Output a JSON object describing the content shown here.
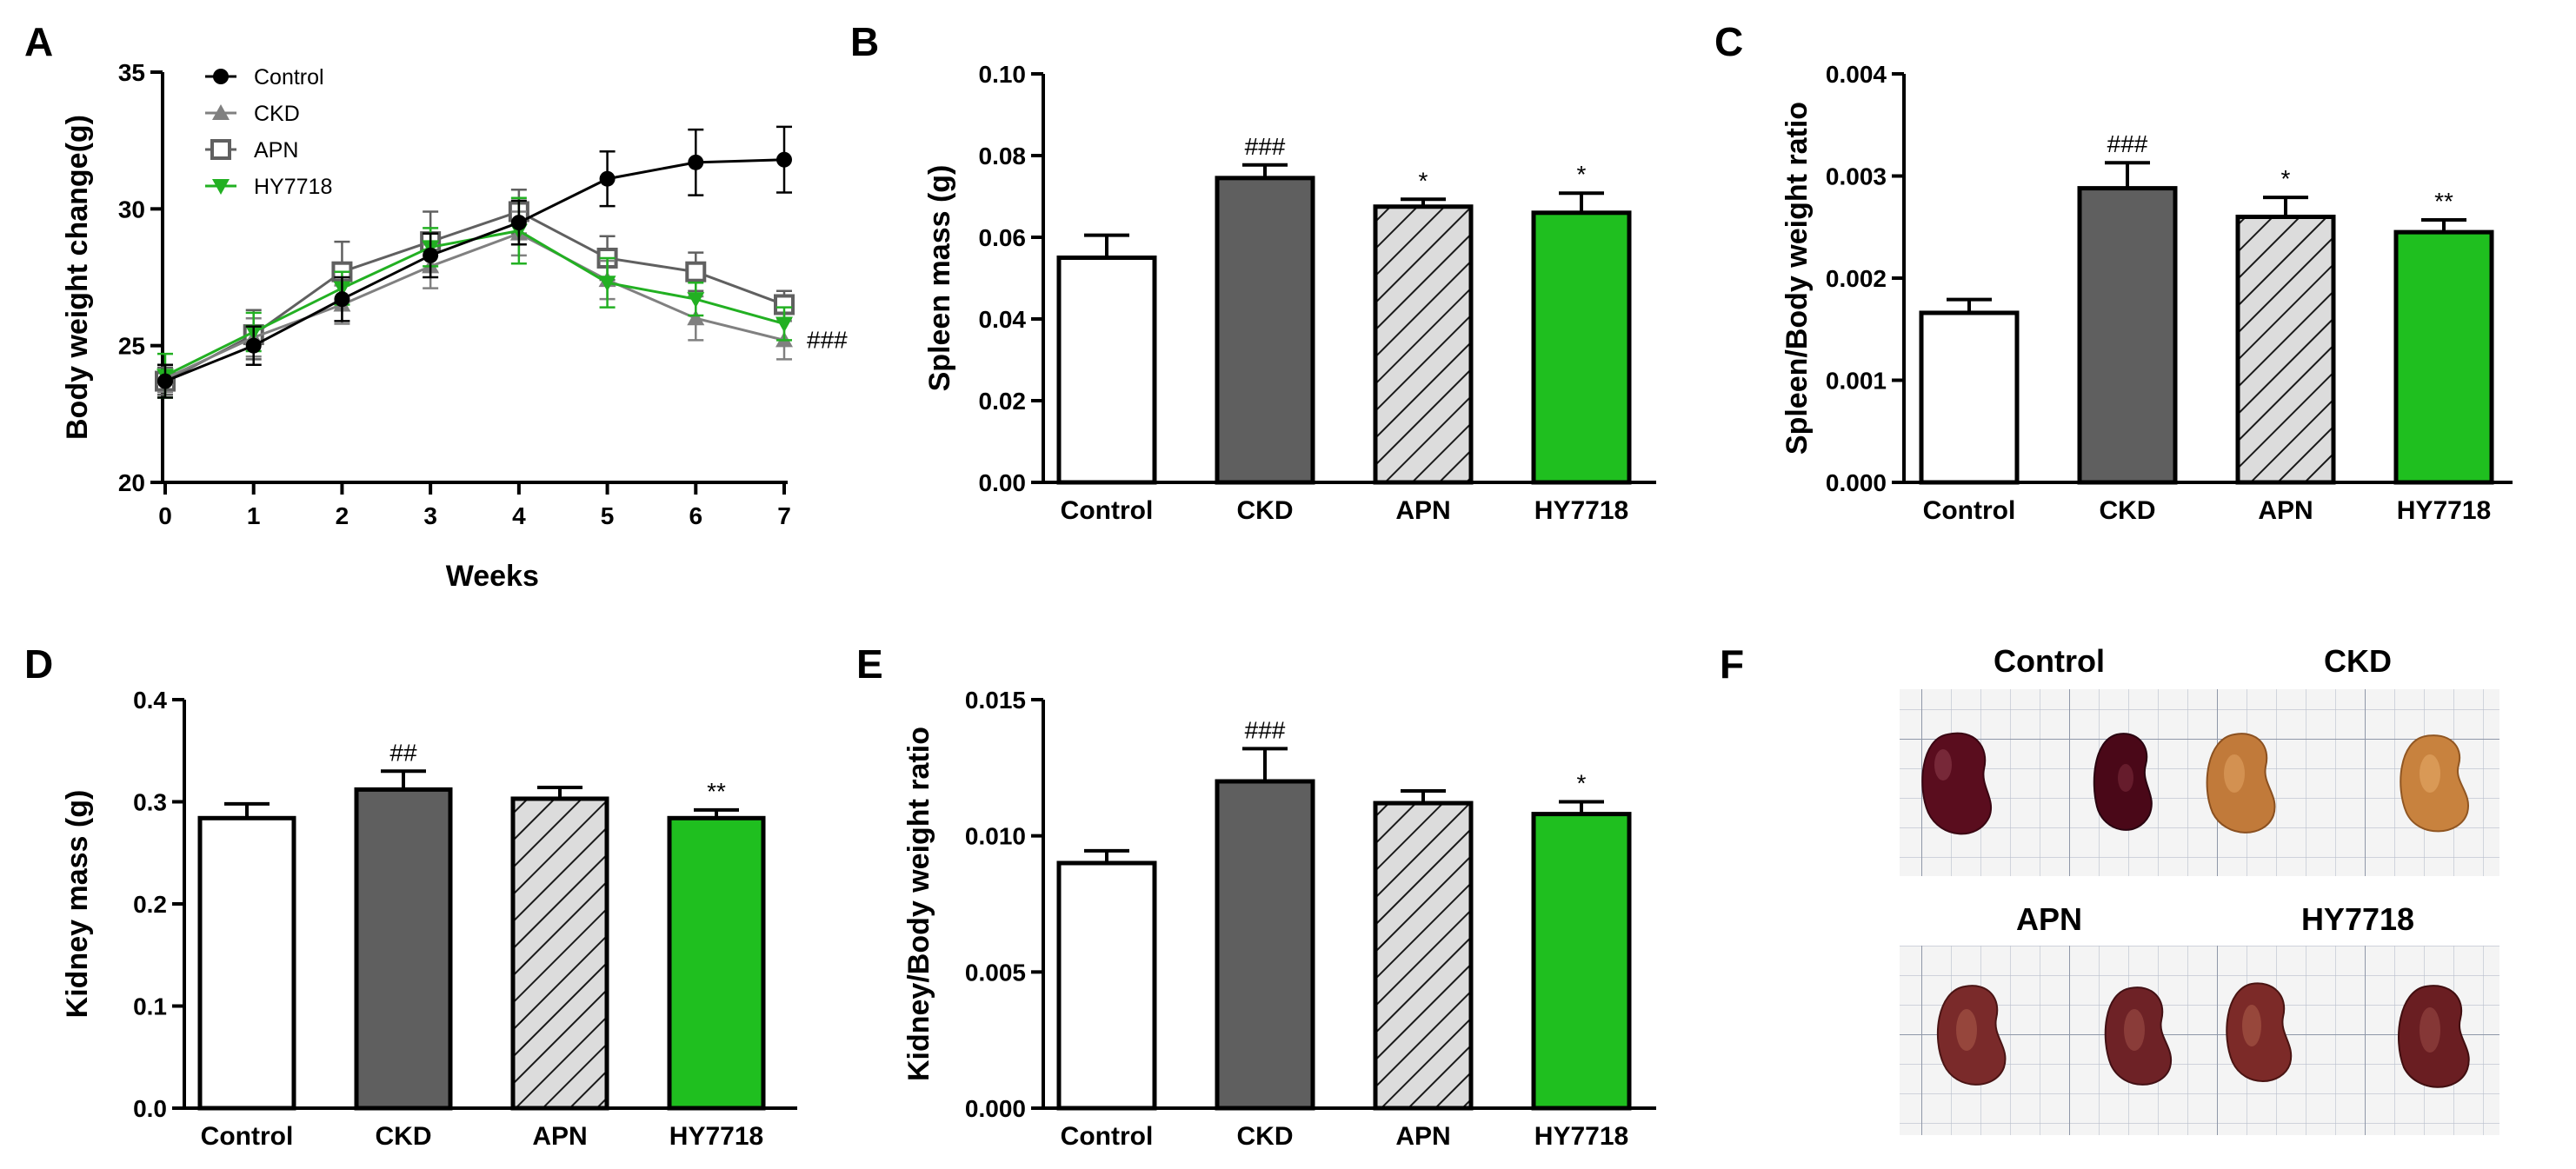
{
  "panels": {
    "A": "A",
    "B": "B",
    "C": "C",
    "D": "D",
    "E": "E",
    "F": "F"
  },
  "colors": {
    "control": "#ffffff",
    "ckd": "#5f5f5f",
    "apn": "#dcdcdc",
    "hy7718": "#1fbf1f",
    "control_line": "#000000",
    "ckd_line": "#808080",
    "apn_line": "#606060",
    "hy7718_line": "#22b022"
  },
  "photo": {
    "labels": [
      "Control",
      "CKD",
      "APN",
      "HY7718"
    ]
  },
  "chart_data": [
    {
      "id": "A",
      "type": "line",
      "xlabel": "Weeks",
      "ylabel": "Body weight change(g)",
      "x": [
        0,
        1,
        2,
        3,
        4,
        5,
        6,
        7
      ],
      "xlim": [
        0,
        7
      ],
      "ylim": [
        20,
        35
      ],
      "yticks": [
        20,
        25,
        30,
        35
      ],
      "xticks": [
        0,
        1,
        2,
        3,
        4,
        5,
        6,
        7
      ],
      "annotation": "###",
      "series": [
        {
          "name": "Control",
          "marker": "circle",
          "values": [
            23.7,
            25.0,
            26.7,
            28.3,
            29.5,
            31.1,
            31.7,
            31.8
          ],
          "err": [
            0.6,
            0.7,
            0.8,
            0.8,
            0.8,
            1.0,
            1.2,
            1.2
          ]
        },
        {
          "name": "CKD",
          "marker": "triangle-up",
          "values": [
            23.8,
            25.3,
            26.5,
            27.9,
            29.1,
            27.4,
            26.0,
            25.2
          ],
          "err": [
            0.5,
            0.7,
            0.7,
            0.8,
            0.8,
            0.7,
            0.8,
            0.7
          ]
        },
        {
          "name": "APN",
          "marker": "square-open",
          "values": [
            23.7,
            25.4,
            27.7,
            28.8,
            29.9,
            28.2,
            27.7,
            26.5
          ],
          "err": [
            0.5,
            0.9,
            1.1,
            1.1,
            0.8,
            0.8,
            0.7,
            0.5
          ]
        },
        {
          "name": "HY7718",
          "marker": "triangle-down",
          "values": [
            23.9,
            25.5,
            27.1,
            28.6,
            29.2,
            27.3,
            26.7,
            25.8
          ],
          "err": [
            0.8,
            0.7,
            0.6,
            0.7,
            1.2,
            0.9,
            0.6,
            0.6
          ]
        }
      ]
    },
    {
      "id": "B",
      "type": "bar",
      "ylabel": "Spleen mass (g)",
      "categories": [
        "Control",
        "CKD",
        "APN",
        "HY7718"
      ],
      "values": [
        0.055,
        0.0745,
        0.0675,
        0.066
      ],
      "err": [
        0.0055,
        0.0032,
        0.0018,
        0.0048
      ],
      "sig": [
        "",
        "###",
        "*",
        "*"
      ],
      "ylim": [
        0,
        0.1
      ],
      "yticks": [
        "0.00",
        "0.02",
        "0.04",
        "0.06",
        "0.08",
        "0.10"
      ]
    },
    {
      "id": "C",
      "type": "bar",
      "ylabel": "Spleen/Body weight ratio",
      "categories": [
        "Control",
        "CKD",
        "APN",
        "HY7718"
      ],
      "values": [
        0.00166,
        0.00288,
        0.0026,
        0.00245
      ],
      "err": [
        0.00013,
        0.00025,
        0.00019,
        0.00012
      ],
      "sig": [
        "",
        "###",
        "*",
        "**"
      ],
      "ylim": [
        0,
        0.004
      ],
      "yticks": [
        "0.000",
        "0.001",
        "0.002",
        "0.003",
        "0.004"
      ]
    },
    {
      "id": "D",
      "type": "bar",
      "ylabel": "Kidney mass (g)",
      "categories": [
        "Control",
        "CKD",
        "APN",
        "HY7718"
      ],
      "values": [
        0.284,
        0.312,
        0.303,
        0.284
      ],
      "err": [
        0.014,
        0.018,
        0.011,
        0.008
      ],
      "sig": [
        "",
        "##",
        "",
        "**"
      ],
      "ylim": [
        0,
        0.4
      ],
      "yticks": [
        "0.0",
        "0.1",
        "0.2",
        "0.3",
        "0.4"
      ]
    },
    {
      "id": "E",
      "type": "bar",
      "ylabel": "Kidney/Body weight ratio",
      "categories": [
        "Control",
        "CKD",
        "APN",
        "HY7718"
      ],
      "values": [
        0.009,
        0.012,
        0.0112,
        0.0108
      ],
      "err": [
        0.00045,
        0.0012,
        0.00045,
        0.00045
      ],
      "sig": [
        "",
        "###",
        "",
        "*"
      ],
      "ylim": [
        0,
        0.015
      ],
      "yticks": [
        "0.000",
        "0.005",
        "0.010",
        "0.015"
      ]
    }
  ]
}
